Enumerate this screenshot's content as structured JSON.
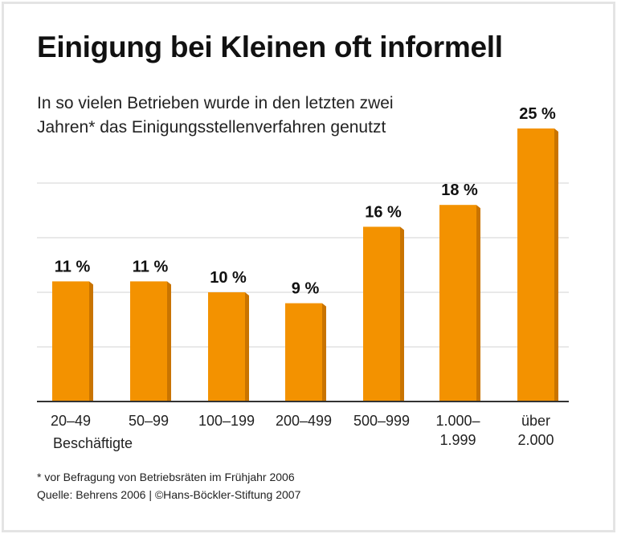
{
  "chart_data": {
    "type": "bar",
    "title": "Einigung bei Kleinen oft informell",
    "subtitle": "In so vielen Betrieben wurde in den letzten zwei Jahren* das Einigungsstellenverfahren genutzt",
    "categories": [
      "20–49",
      "50–99",
      "100–199",
      "200–499",
      "500–999",
      "1.000–\n1.999",
      "über\n2.000"
    ],
    "values": [
      11,
      11,
      10,
      9,
      16,
      18,
      25
    ],
    "data_labels": [
      "11 %",
      "11 %",
      "10 %",
      "9 %",
      "16 %",
      "18 %",
      "25 %"
    ],
    "xlabel": "Beschäftigte",
    "ylabel": "",
    "ylim": [
      0,
      25
    ],
    "grid": true,
    "bar_color": "#f39200",
    "bar_side_color": "#c97400"
  },
  "footnote": "* vor Befragung von Betriebsräten im Frühjahr 2006",
  "source": "Quelle: Behrens 2006 | ©Hans-Böckler-Stiftung 2007"
}
